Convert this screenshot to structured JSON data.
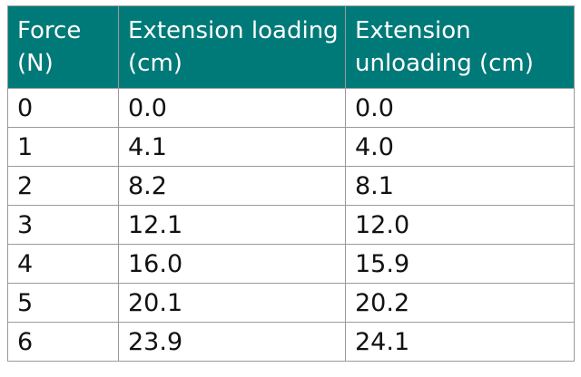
{
  "table": {
    "header": [
      "Force (N)",
      "Extension loading (cm)",
      "Extension unloading (cm)"
    ],
    "rows": [
      [
        "0",
        "0.0",
        "0.0"
      ],
      [
        "1",
        "4.1",
        "4.0"
      ],
      [
        "2",
        "8.2",
        "8.1"
      ],
      [
        "3",
        "12.1",
        "12.0"
      ],
      [
        "4",
        "16.0",
        "15.9"
      ],
      [
        "5",
        "20.1",
        "20.2"
      ],
      [
        "6",
        "23.9",
        "24.1"
      ]
    ]
  }
}
